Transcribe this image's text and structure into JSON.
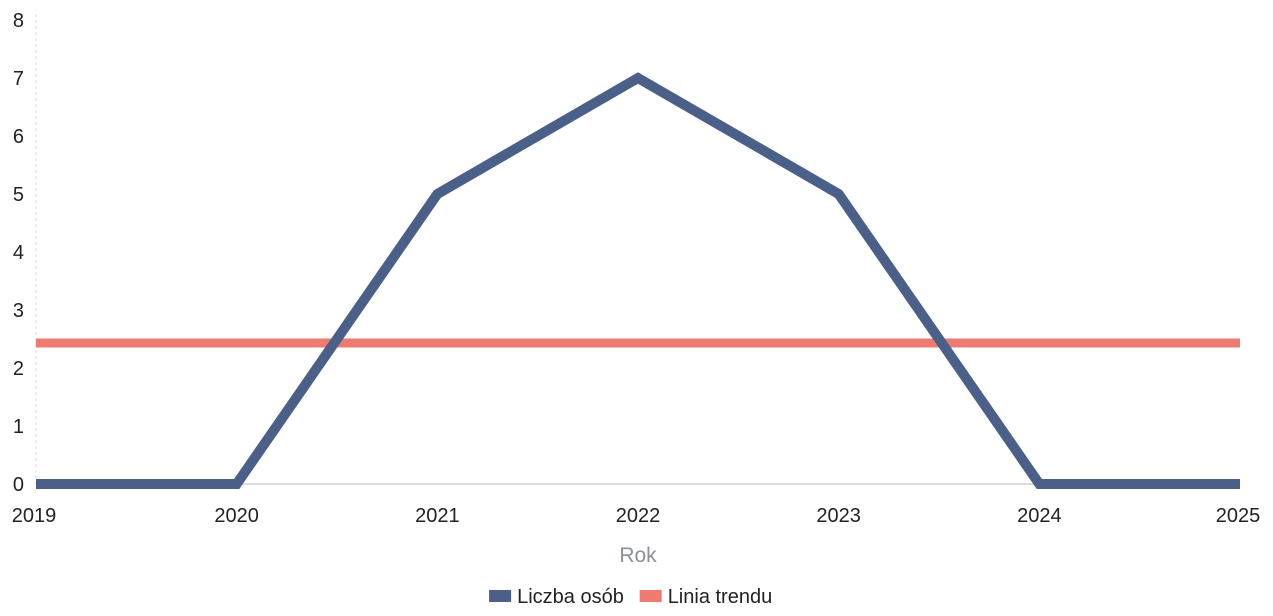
{
  "chart_data": {
    "type": "line",
    "title": "",
    "xlabel": "Rok",
    "ylabel": "",
    "x": [
      2019,
      2020,
      2021,
      2022,
      2023,
      2024,
      2025
    ],
    "xlim": [
      2019,
      2025
    ],
    "ylim": [
      0,
      8
    ],
    "y_ticks": [
      0,
      1,
      2,
      3,
      4,
      5,
      6,
      7,
      8
    ],
    "x_tick_labels": [
      "2019",
      "2020",
      "2021",
      "2022",
      "2023",
      "2024",
      "2025"
    ],
    "y_tick_labels": [
      "0",
      "1",
      "2",
      "3",
      "4",
      "5",
      "6",
      "7",
      "8"
    ],
    "grid": false,
    "legend_position": "bottom-center",
    "series": [
      {
        "name": "Liczba osób",
        "color": "#4a6089",
        "values": [
          0,
          0,
          5,
          7,
          5,
          0,
          0
        ]
      },
      {
        "name": "Linia trendu",
        "color": "#ee7a72",
        "values": [
          2.43,
          2.43,
          2.43,
          2.43,
          2.43,
          2.43,
          2.43
        ]
      }
    ]
  }
}
